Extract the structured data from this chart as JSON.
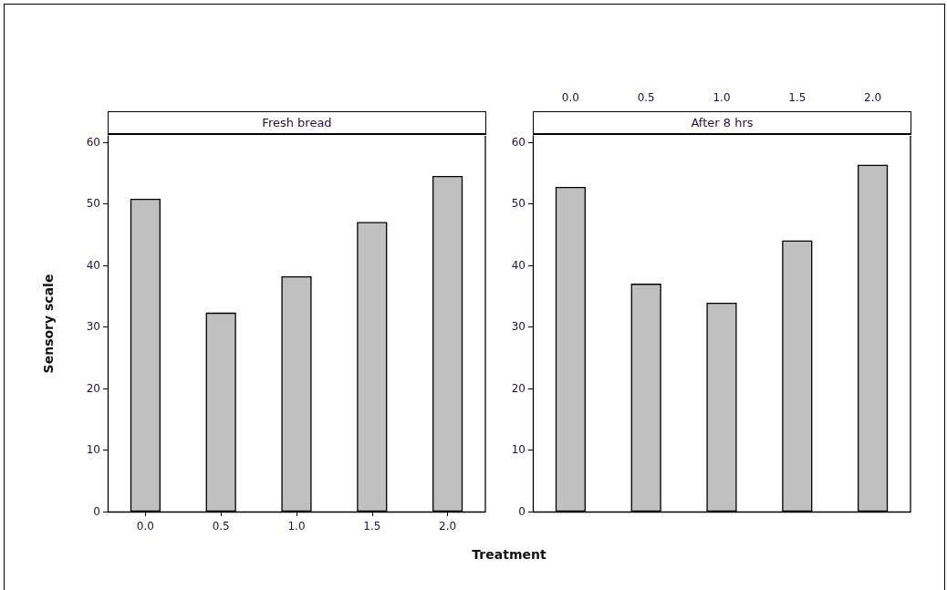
{
  "chart_data": [
    {
      "type": "bar",
      "title": "Fresh bread",
      "xlabel": "Treatment",
      "ylabel": "Sensory scale",
      "categories": [
        "0.0",
        "0.5",
        "1.0",
        "1.5",
        "2.0"
      ],
      "values": [
        50.8,
        32.3,
        38.2,
        47,
        54.5
      ],
      "color": "#c0c0c0",
      "ylim": [
        0,
        61
      ],
      "yticks": [
        0,
        10,
        20,
        30,
        40,
        50,
        60
      ],
      "grid": false
    },
    {
      "type": "bar",
      "title": "After 8 hrs",
      "categories": [
        "0.0",
        "0.5",
        "1.0",
        "1.5",
        "2.0"
      ],
      "values": [
        52.7,
        37,
        33.9,
        44,
        56.3
      ],
      "color": "#c0c0c0",
      "ylim": [
        0,
        61
      ],
      "yticks": [
        0,
        10,
        20,
        30,
        40,
        50,
        60
      ],
      "grid": false
    }
  ]
}
